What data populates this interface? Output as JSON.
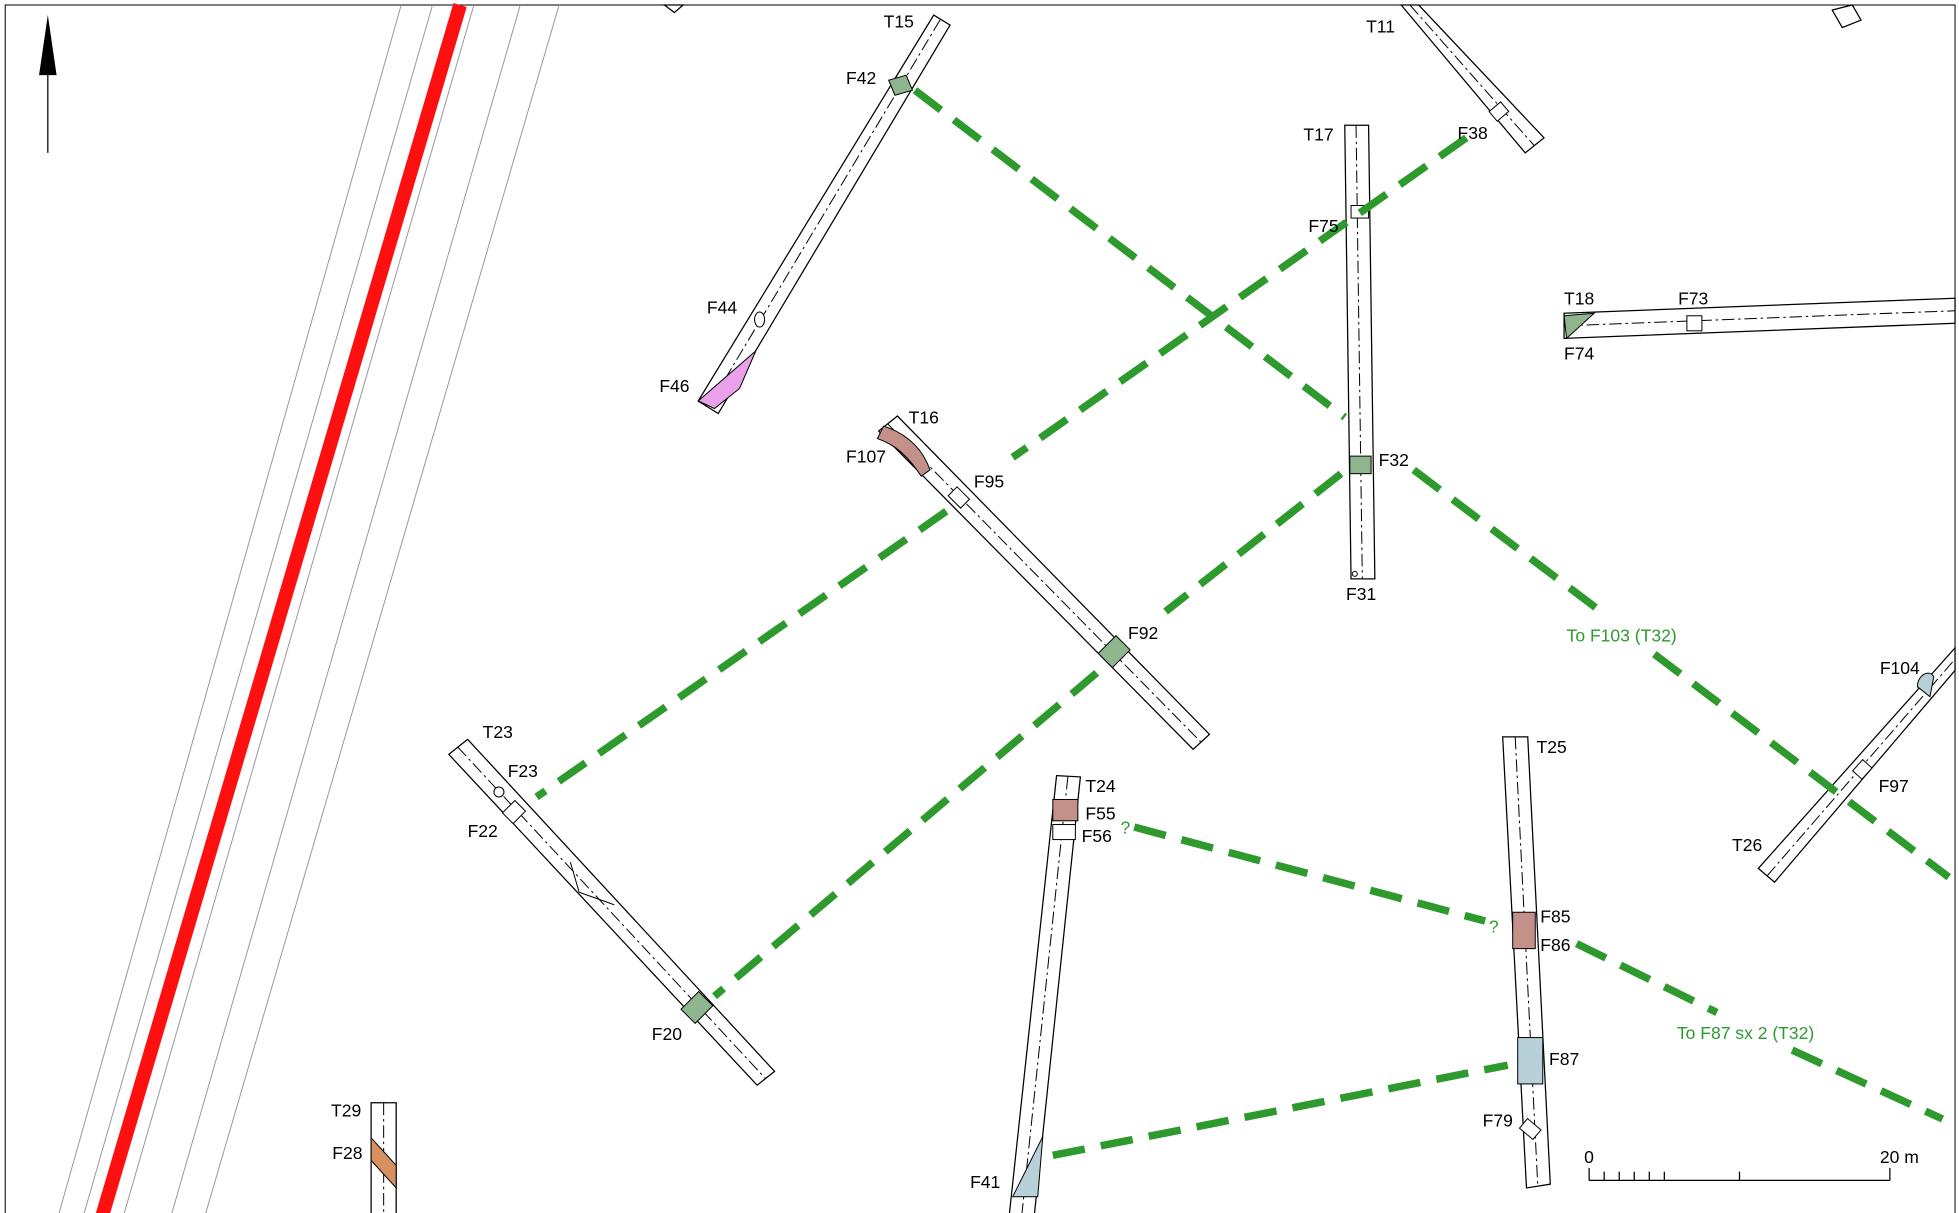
{
  "labels": [
    "T15",
    "F42",
    "T11",
    "F38",
    "T17",
    "F75",
    "F44",
    "F46",
    "T16",
    "F107",
    "F95",
    "F32",
    "F31",
    "T18",
    "F73",
    "F74",
    "F104",
    "F97",
    "T26",
    "T23",
    "F23",
    "F22",
    "F92",
    "T24",
    "F55",
    "F56",
    "T25",
    "F85",
    "F86",
    "F87",
    "F79",
    "F41",
    "F20",
    "T29",
    "F28"
  ],
  "annotations": [
    "To F103 (T32)",
    "To F87 sx 2 (T32)",
    "?",
    "?"
  ],
  "scale_bar": {
    "start": "0",
    "end": "20 m"
  }
}
